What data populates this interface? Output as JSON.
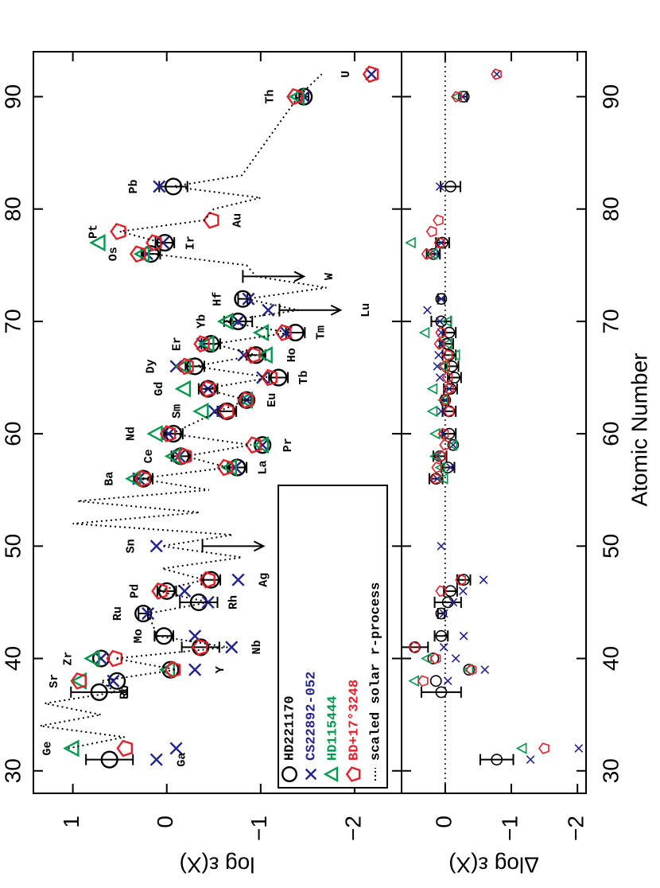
{
  "chart_data": {
    "type": "scatter",
    "xlabel": "Atomic Number",
    "ylabel": "log ε(X)",
    "delta_label": "Δlog ε(X)",
    "xlim": [
      28,
      94
    ],
    "xticks": [
      30,
      40,
      50,
      60,
      70,
      80,
      90
    ],
    "ylim": [
      -2.5,
      1.42
    ],
    "yticks": [
      {
        "value": -2,
        "label": "−2"
      },
      {
        "value": -1,
        "label": "−1"
      },
      0,
      1
    ],
    "delta_lim": [
      -2.13,
      0.66
    ],
    "delta_ticks": [
      {
        "value": -2,
        "label": "−2"
      },
      {
        "value": -1,
        "label": "−1"
      },
      0
    ],
    "legend": "lower left",
    "series": [
      {
        "name": "HD221170",
        "color": "#000000",
        "marker": "circle",
        "x": [
          31,
          37,
          38,
          39,
          40,
          41,
          42,
          44,
          45,
          46,
          47,
          56,
          57,
          58,
          59,
          60,
          62,
          63,
          64,
          65,
          66,
          67,
          68,
          69,
          70,
          72,
          76,
          77,
          82,
          90
        ],
        "values": [
          0.61,
          0.72,
          0.53,
          -0.04,
          0.7,
          -0.36,
          0.03,
          0.25,
          -0.34,
          0.0,
          -0.47,
          0.25,
          -0.75,
          -0.15,
          -1.02,
          -0.07,
          -0.64,
          -0.85,
          -0.44,
          -1.19,
          -0.3,
          -0.95,
          -0.47,
          -1.37,
          -0.76,
          -0.81,
          0.17,
          0.02,
          -0.07,
          -1.46
        ],
        "errors": [
          0.25,
          0.3,
          null,
          null,
          null,
          0.2,
          0.1,
          0.05,
          0.2,
          0.1,
          0.1,
          0.1,
          0.1,
          0.1,
          null,
          0.1,
          0.1,
          0.05,
          0.1,
          0.1,
          0.1,
          0.1,
          0.1,
          0.1,
          0.15,
          0.05,
          0.1,
          0.1,
          0.15,
          0.05
        ],
        "delta": [
          -0.78,
          0.06,
          0.14,
          -0.36,
          0.18,
          0.46,
          0.06,
          0.06,
          -0.04,
          -0.08,
          -0.28,
          0.14,
          -0.04,
          0.08,
          -0.12,
          -0.06,
          -0.06,
          0.0,
          -0.08,
          -0.14,
          -0.1,
          -0.06,
          -0.02,
          -0.06,
          0.06,
          0.06,
          0.18,
          0.04,
          -0.08,
          -0.28
        ],
        "limit_x": [
          50,
          71,
          74
        ],
        "limit_values": [
          -0.38,
          -1.2,
          -0.81
        ]
      },
      {
        "name": "CS22892-052",
        "color": "#23238e",
        "marker": "x",
        "x": [
          31,
          32,
          38,
          39,
          40,
          41,
          42,
          44,
          45,
          46,
          47,
          50,
          56,
          57,
          58,
          59,
          60,
          62,
          63,
          64,
          65,
          66,
          67,
          68,
          69,
          70,
          71,
          72,
          76,
          77,
          82,
          90,
          92
        ],
        "values": [
          0.11,
          -0.1,
          0.57,
          -0.3,
          0.7,
          -0.69,
          -0.3,
          0.2,
          -0.44,
          -0.19,
          -0.76,
          0.11,
          0.3,
          -0.73,
          -0.13,
          -1.02,
          -0.02,
          -0.51,
          -0.85,
          -0.44,
          -1.02,
          -0.1,
          -0.82,
          -0.38,
          -1.27,
          -0.76,
          -1.08,
          -0.87,
          0.21,
          0.04,
          0.08,
          -1.46,
          -2.18
        ],
        "delta": [
          -1.29,
          -2.02,
          -0.04,
          -0.6,
          -0.16,
          0.02,
          -0.28,
          0.02,
          -0.12,
          -0.27,
          -0.58,
          0.06,
          0.12,
          -0.08,
          0.12,
          -0.12,
          0.04,
          0.06,
          0.0,
          -0.06,
          0.08,
          0.12,
          0.1,
          0.06,
          0.06,
          0.08,
          0.27,
          0.06,
          0.14,
          0.06,
          0.08,
          -0.26,
          -0.78
        ]
      },
      {
        "name": "HD115444",
        "color": "#00994d",
        "marker": "triangle",
        "x": [
          32,
          38,
          39,
          40,
          56,
          57,
          58,
          59,
          60,
          62,
          63,
          64,
          66,
          67,
          68,
          69,
          70,
          76,
          77,
          90
        ],
        "values": [
          1.0,
          0.92,
          -0.02,
          0.78,
          0.34,
          -0.68,
          -0.08,
          -1.02,
          0.11,
          -0.38,
          -0.85,
          -0.19,
          -0.19,
          -1.06,
          -0.44,
          -1.02,
          -0.64,
          0.25,
          0.72,
          -1.4
        ],
        "delta": [
          -1.17,
          0.46,
          -0.36,
          0.27,
          0.02,
          0.06,
          0.14,
          -0.12,
          0.14,
          0.18,
          0.02,
          0.18,
          0.02,
          -0.16,
          -0.04,
          0.3,
          -0.04,
          0.18,
          0.51,
          -0.18
        ]
      },
      {
        "name": "BD+17°3248",
        "color": "#e3202a",
        "marker": "pentagon",
        "x": [
          32,
          38,
          39,
          40,
          41,
          46,
          47,
          56,
          57,
          58,
          59,
          60,
          62,
          63,
          64,
          65,
          66,
          67,
          68,
          69,
          76,
          77,
          78,
          79,
          90,
          92
        ],
        "values": [
          0.44,
          0.93,
          -0.07,
          0.55,
          -0.36,
          0.07,
          -0.44,
          0.25,
          -0.63,
          -0.19,
          -0.93,
          -0.02,
          -0.64,
          -0.85,
          -0.44,
          -1.1,
          -0.21,
          -0.92,
          -0.38,
          -1.25,
          0.3,
          0.13,
          0.51,
          -0.48,
          -1.37,
          -2.18
        ],
        "delta": [
          -1.5,
          0.33,
          -0.4,
          0.14,
          0.46,
          0.06,
          -0.24,
          0.14,
          0.12,
          0.06,
          0.0,
          0.02,
          -0.06,
          0.0,
          -0.06,
          -0.04,
          0.0,
          -0.04,
          0.08,
          0.06,
          0.27,
          0.08,
          0.2,
          0.1,
          -0.18,
          -0.78
        ]
      },
      {
        "name": "scaled solar r-process",
        "color": "#000000",
        "marker": "dotted-line",
        "x": [
          32,
          33,
          34,
          35,
          36,
          37,
          38,
          39,
          40,
          41,
          42,
          44,
          45,
          46,
          47,
          48,
          49,
          50,
          51,
          52,
          53,
          54,
          55,
          56,
          57,
          58,
          59,
          60,
          62,
          63,
          64,
          65,
          66,
          67,
          68,
          69,
          70,
          71,
          72,
          73,
          74,
          75,
          76,
          77,
          78,
          79,
          80,
          81,
          82,
          83,
          90,
          92
        ],
        "values": [
          1.05,
          0.45,
          1.35,
          0.7,
          1.3,
          0.55,
          0.7,
          -0.1,
          0.55,
          -0.65,
          0.1,
          0.2,
          -0.45,
          0.1,
          -0.4,
          0.05,
          -0.8,
          0.05,
          -0.7,
          1.0,
          -0.35,
          0.95,
          -0.45,
          0.3,
          -0.65,
          -0.2,
          -0.9,
          -0.05,
          -0.55,
          -0.85,
          -0.4,
          -1.1,
          -0.3,
          -0.95,
          -0.5,
          -1.3,
          -0.6,
          -1.4,
          -0.85,
          -1.7,
          -0.95,
          -0.85,
          0.15,
          0.05,
          0.5,
          -0.4,
          -0.5,
          -1.0,
          -0.05,
          -0.8,
          -1.4,
          -1.65
        ]
      }
    ],
    "elements": [
      {
        "symbol": "Ga",
        "z": 31,
        "above": false
      },
      {
        "symbol": "Ge",
        "z": 32,
        "above": true
      },
      {
        "symbol": "Rb",
        "z": 37,
        "above": false
      },
      {
        "symbol": "Sr",
        "z": 38,
        "above": true
      },
      {
        "symbol": "Y",
        "z": 39,
        "above": false
      },
      {
        "symbol": "Zr",
        "z": 40,
        "above": true
      },
      {
        "symbol": "Nb",
        "z": 41,
        "above": false
      },
      {
        "symbol": "Mo",
        "z": 42,
        "above": true
      },
      {
        "symbol": "Ru",
        "z": 44,
        "above": true
      },
      {
        "symbol": "Rh",
        "z": 45,
        "above": false
      },
      {
        "symbol": "Pd",
        "z": 46,
        "above": true
      },
      {
        "symbol": "Ag",
        "z": 47,
        "above": false
      },
      {
        "symbol": "Sn",
        "z": 50,
        "above": true
      },
      {
        "symbol": "Ba",
        "z": 56,
        "above": true
      },
      {
        "symbol": "La",
        "z": 57,
        "above": false
      },
      {
        "symbol": "Ce",
        "z": 58,
        "above": true
      },
      {
        "symbol": "Pr",
        "z": 59,
        "above": false
      },
      {
        "symbol": "Nd",
        "z": 60,
        "above": true
      },
      {
        "symbol": "Sm",
        "z": 62,
        "above": true
      },
      {
        "symbol": "Eu",
        "z": 63,
        "above": false
      },
      {
        "symbol": "Gd",
        "z": 64,
        "above": true
      },
      {
        "symbol": "Tb",
        "z": 65,
        "above": false
      },
      {
        "symbol": "Dy",
        "z": 66,
        "above": true
      },
      {
        "symbol": "Ho",
        "z": 67,
        "above": false
      },
      {
        "symbol": "Er",
        "z": 68,
        "above": true
      },
      {
        "symbol": "Tm",
        "z": 69,
        "above": false
      },
      {
        "symbol": "Yb",
        "z": 70,
        "above": true
      },
      {
        "symbol": "Lu",
        "z": 71,
        "above": false
      },
      {
        "symbol": "Hf",
        "z": 72,
        "above": true
      },
      {
        "symbol": "W",
        "z": 74,
        "above": false
      },
      {
        "symbol": "Os",
        "z": 76,
        "above": true
      },
      {
        "symbol": "Ir",
        "z": 77,
        "above": false
      },
      {
        "symbol": "Pt",
        "z": 78,
        "above": true
      },
      {
        "symbol": "Au",
        "z": 79,
        "above": false
      },
      {
        "symbol": "Pb",
        "z": 82,
        "above": true
      },
      {
        "symbol": "Th",
        "z": 90,
        "above": true
      },
      {
        "symbol": "U",
        "z": 92,
        "above": true
      }
    ]
  }
}
